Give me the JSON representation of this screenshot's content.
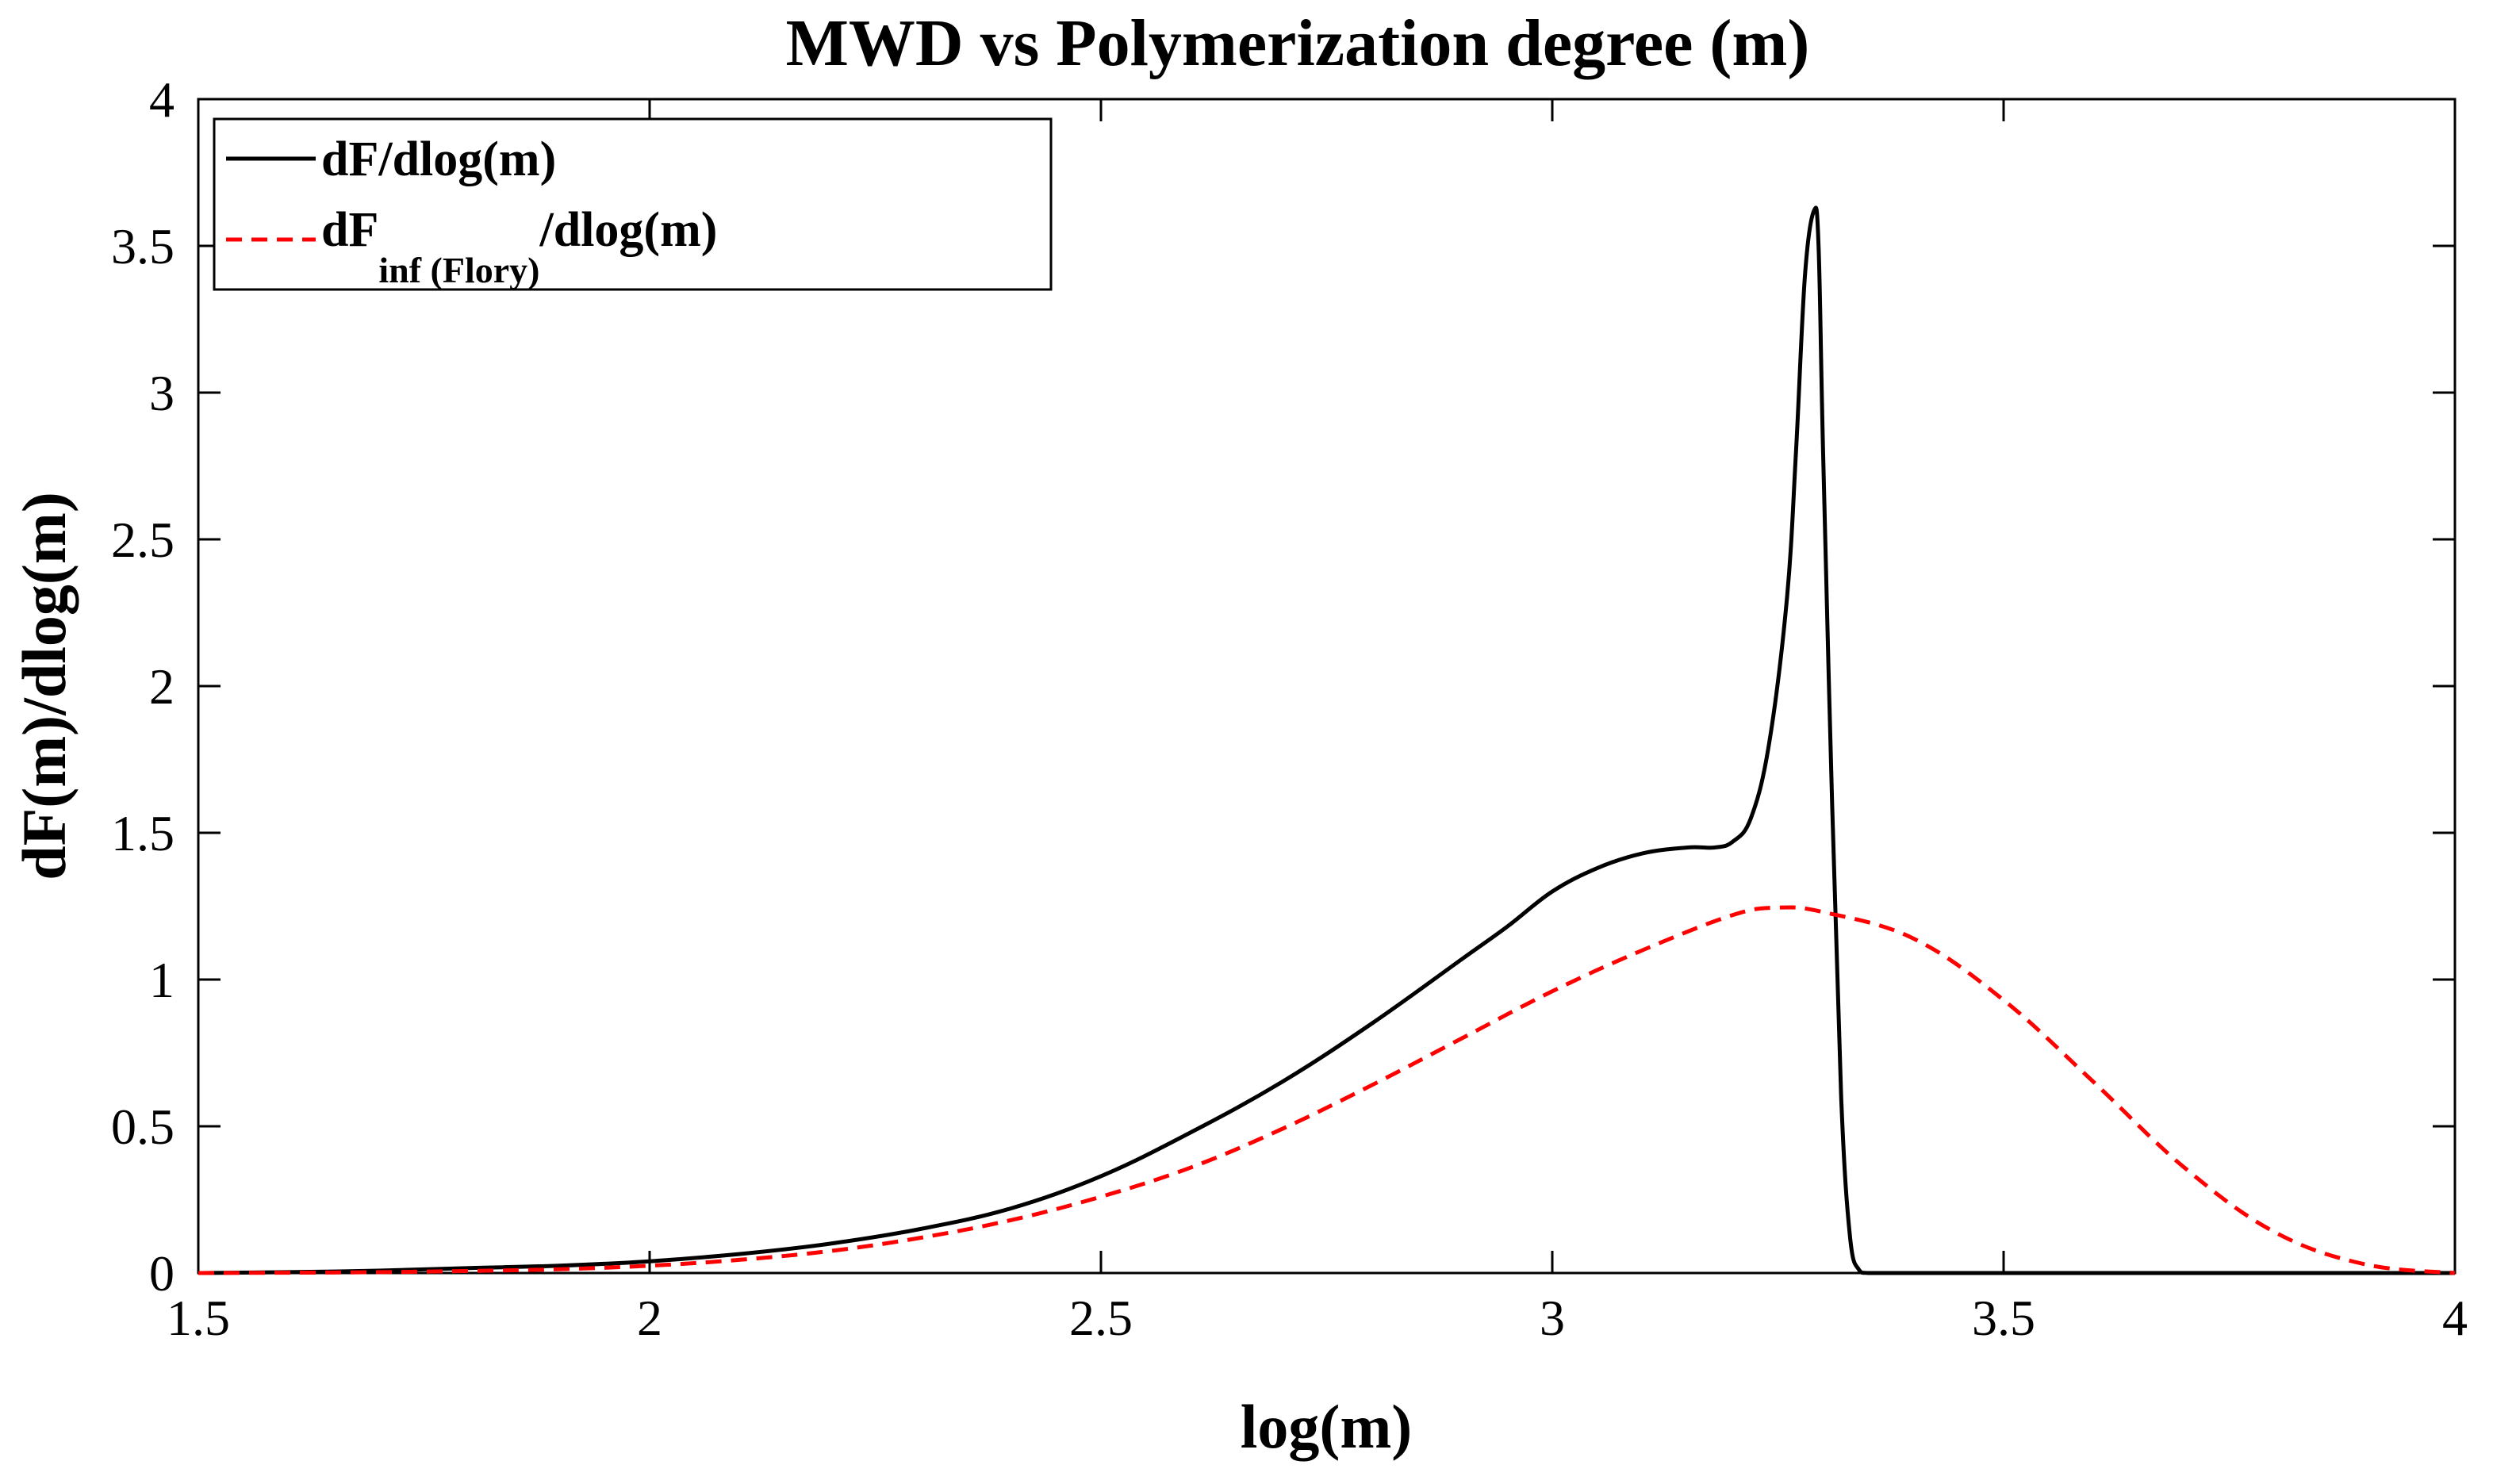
{
  "chart_data": {
    "type": "line",
    "title": "MWD vs Polymerization degree (m)",
    "xlabel": "log(m)",
    "ylabel": "dF(m)/dlog(m)",
    "xlim": [
      1.5,
      4
    ],
    "ylim": [
      0,
      4
    ],
    "xticks": [
      1.5,
      2,
      2.5,
      3,
      3.5,
      4
    ],
    "yticks": [
      0,
      0.5,
      1,
      1.5,
      2,
      2.5,
      3,
      3.5,
      4
    ],
    "xtick_labels": [
      "1.5",
      "2",
      "2.5",
      "3",
      "3.5",
      "4"
    ],
    "ytick_labels": [
      "0",
      "0.5",
      "1",
      "1.5",
      "2",
      "2.5",
      "3",
      "3.5",
      "4"
    ],
    "grid": false,
    "legend_position": "top-left",
    "series": [
      {
        "name": "dF/dlog(m)",
        "legend_main": "dF/dlog(m)",
        "color": "#000000",
        "style": "solid",
        "x": [
          1.5,
          1.6,
          1.7,
          1.8,
          1.9,
          2.0,
          2.1,
          2.2,
          2.3,
          2.4,
          2.5,
          2.6,
          2.7,
          2.8,
          2.9,
          2.95,
          3.0,
          3.05,
          3.1,
          3.15,
          3.18,
          3.2,
          3.22,
          3.24,
          3.26,
          3.27,
          3.28,
          3.29,
          3.295,
          3.3,
          3.31,
          3.32,
          3.33,
          3.34,
          3.35,
          3.4,
          3.5,
          4.0
        ],
        "y": [
          0.0,
          0.003,
          0.008,
          0.017,
          0.025,
          0.04,
          0.065,
          0.1,
          0.15,
          0.22,
          0.33,
          0.48,
          0.65,
          0.85,
          1.07,
          1.18,
          1.3,
          1.38,
          1.43,
          1.45,
          1.45,
          1.47,
          1.55,
          1.8,
          2.3,
          2.8,
          3.4,
          3.62,
          3.5,
          2.8,
          1.6,
          0.6,
          0.12,
          0.01,
          0.0,
          0.0,
          0.0,
          0.0
        ]
      },
      {
        "name": "dF_inf (Flory)/dlog(m)",
        "legend_main": "dF",
        "legend_sub": "inf (Flory)",
        "legend_tail": "/dlog(m)",
        "color": "#ff0000",
        "style": "dashed",
        "x": [
          1.5,
          1.6,
          1.7,
          1.8,
          1.9,
          2.0,
          2.1,
          2.2,
          2.3,
          2.4,
          2.5,
          2.6,
          2.7,
          2.8,
          2.9,
          3.0,
          3.1,
          3.2,
          3.25,
          3.3,
          3.4,
          3.5,
          3.6,
          3.7,
          3.8,
          3.9,
          4.0
        ],
        "y": [
          0.0,
          0.001,
          0.003,
          0.007,
          0.013,
          0.025,
          0.045,
          0.075,
          0.12,
          0.18,
          0.26,
          0.36,
          0.49,
          0.64,
          0.8,
          0.96,
          1.1,
          1.22,
          1.245,
          1.23,
          1.14,
          0.93,
          0.65,
          0.36,
          0.14,
          0.03,
          0.0
        ]
      }
    ]
  }
}
